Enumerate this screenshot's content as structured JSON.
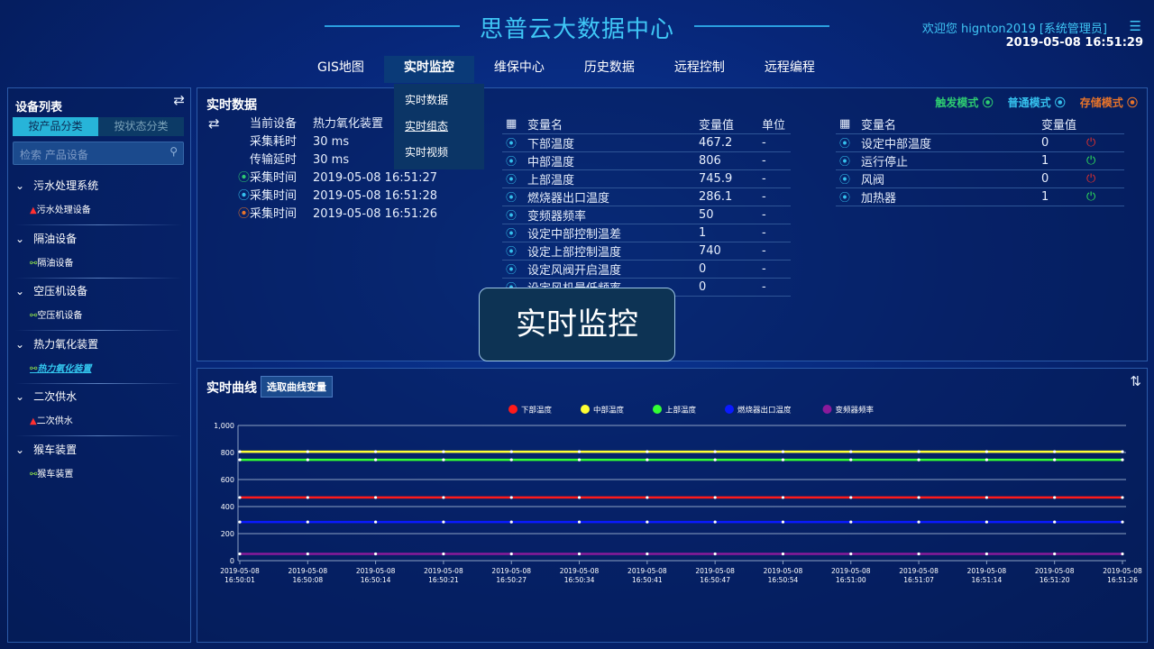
{
  "header": {
    "title": "思普云大数据中心",
    "welcome": "欢迎您  hignton2019 [系统管理员]",
    "datetime": "2019-05-08 16:51:29",
    "menu_icon": "list-icon"
  },
  "nav": {
    "items": [
      "GIS地图",
      "实时监控",
      "维保中心",
      "历史数据",
      "远程控制",
      "远程编程"
    ],
    "active": "实时监控",
    "dropdown": [
      "实时数据",
      "实时组态",
      "实时视频"
    ]
  },
  "sidebar": {
    "title": "设备列表",
    "tabs": [
      "按产品分类",
      "按状态分类"
    ],
    "search_placeholder": "检索 产品设备",
    "groups": [
      {
        "name": "污水处理系统",
        "item": "污水处理设备",
        "status": "alarm"
      },
      {
        "name": "隔油设备",
        "item": "隔油设备",
        "status": "link"
      },
      {
        "name": "空压机设备",
        "item": "空压机设备",
        "status": "link"
      },
      {
        "name": "热力氧化装置",
        "item": "热力氧化装置",
        "status": "link",
        "selected": true
      },
      {
        "name": "二次供水",
        "item": "二次供水",
        "status": "alarm"
      },
      {
        "name": "猴车装置",
        "item": "猴车装置",
        "status": "link"
      }
    ]
  },
  "realtime": {
    "title": "实时数据",
    "modes": [
      {
        "label": "触发模式",
        "color": "#2ecc71"
      },
      {
        "label": "普通模式",
        "color": "#35c1ee"
      },
      {
        "label": "存储模式",
        "color": "#e8742a"
      }
    ],
    "info": [
      {
        "label": "当前设备",
        "value": "热力氧化装置"
      },
      {
        "label": "采集耗时",
        "value": "30 ms"
      },
      {
        "label": "传输延时",
        "value": "30 ms"
      },
      {
        "label": "采集时间",
        "value": "2019-05-08 16:51:27",
        "color": "#2ecc71"
      },
      {
        "label": "采集时间",
        "value": "2019-05-08 16:51:28",
        "color": "#35c1ee"
      },
      {
        "label": "采集时间",
        "value": "2019-05-08 16:51:26",
        "color": "#e8742a"
      }
    ],
    "table1": {
      "headers": [
        "变量名",
        "变量值",
        "单位"
      ],
      "rows": [
        [
          "下部温度",
          "467.2",
          "-"
        ],
        [
          "中部温度",
          "806",
          "-"
        ],
        [
          "上部温度",
          "745.9",
          "-"
        ],
        [
          "燃烧器出口温度",
          "286.1",
          "-"
        ],
        [
          "变频器频率",
          "50",
          "-"
        ],
        [
          "设定中部控制温差",
          "1",
          "-"
        ],
        [
          "设定上部控制温度",
          "740",
          "-"
        ],
        [
          "设定风阀开启温度",
          "0",
          "-"
        ],
        [
          "设定风机最低频率",
          "0",
          "-"
        ]
      ]
    },
    "table2": {
      "headers": [
        "变量名",
        "变量值"
      ],
      "rows": [
        {
          "name": "设定中部温度",
          "value": "0",
          "power": "off"
        },
        {
          "name": "运行停止",
          "value": "1",
          "power": "on"
        },
        {
          "name": "风阀",
          "value": "0",
          "power": "off"
        },
        {
          "name": "加热器",
          "value": "1",
          "power": "on"
        }
      ]
    }
  },
  "toast": "实时监控",
  "curve": {
    "title": "实时曲线",
    "pick_button": "选取曲线变量"
  },
  "chart_data": {
    "type": "line",
    "ylim": [
      0,
      1000
    ],
    "yticks": [
      "0",
      "200",
      "400",
      "600",
      "800",
      "1,000"
    ],
    "grid": true,
    "legend": "top-center",
    "x": [
      "2019-05-08 16:50:01",
      "2019-05-08 16:50:08",
      "2019-05-08 16:50:14",
      "2019-05-08 16:50:21",
      "2019-05-08 16:50:27",
      "2019-05-08 16:50:34",
      "2019-05-08 16:50:41",
      "2019-05-08 16:50:47",
      "2019-05-08 16:50:54",
      "2019-05-08 16:51:00",
      "2019-05-08 16:51:07",
      "2019-05-08 16:51:14",
      "2019-05-08 16:51:20",
      "2019-05-08 16:51:26"
    ],
    "series": [
      {
        "name": "下部温度",
        "color": "#ff1a1a",
        "values": [
          467.2,
          467.2,
          467.2,
          467.2,
          467.2,
          467.2,
          467.2,
          467.2,
          467.2,
          467.2,
          467.2,
          467.2,
          467.2,
          467.2
        ]
      },
      {
        "name": "中部温度",
        "color": "#ffff33",
        "values": [
          806,
          806,
          806,
          806,
          806,
          806,
          806,
          806,
          806,
          806,
          806,
          806,
          806,
          806
        ]
      },
      {
        "name": "上部温度",
        "color": "#33ff33",
        "values": [
          745.9,
          745.9,
          745.9,
          745.9,
          745.9,
          745.9,
          745.9,
          745.9,
          745.9,
          745.9,
          745.9,
          745.9,
          745.9,
          745.9
        ]
      },
      {
        "name": "燃烧器出口温度",
        "color": "#0a1aff",
        "values": [
          286.1,
          286.1,
          286.1,
          286.1,
          286.1,
          286.1,
          286.1,
          286.1,
          286.1,
          286.1,
          286.1,
          286.1,
          286.1,
          286.1
        ]
      },
      {
        "name": "变频器频率",
        "color": "#8a1a9a",
        "values": [
          50,
          50,
          50,
          50,
          50,
          50,
          50,
          50,
          50,
          50,
          50,
          50,
          50,
          50
        ]
      }
    ]
  }
}
